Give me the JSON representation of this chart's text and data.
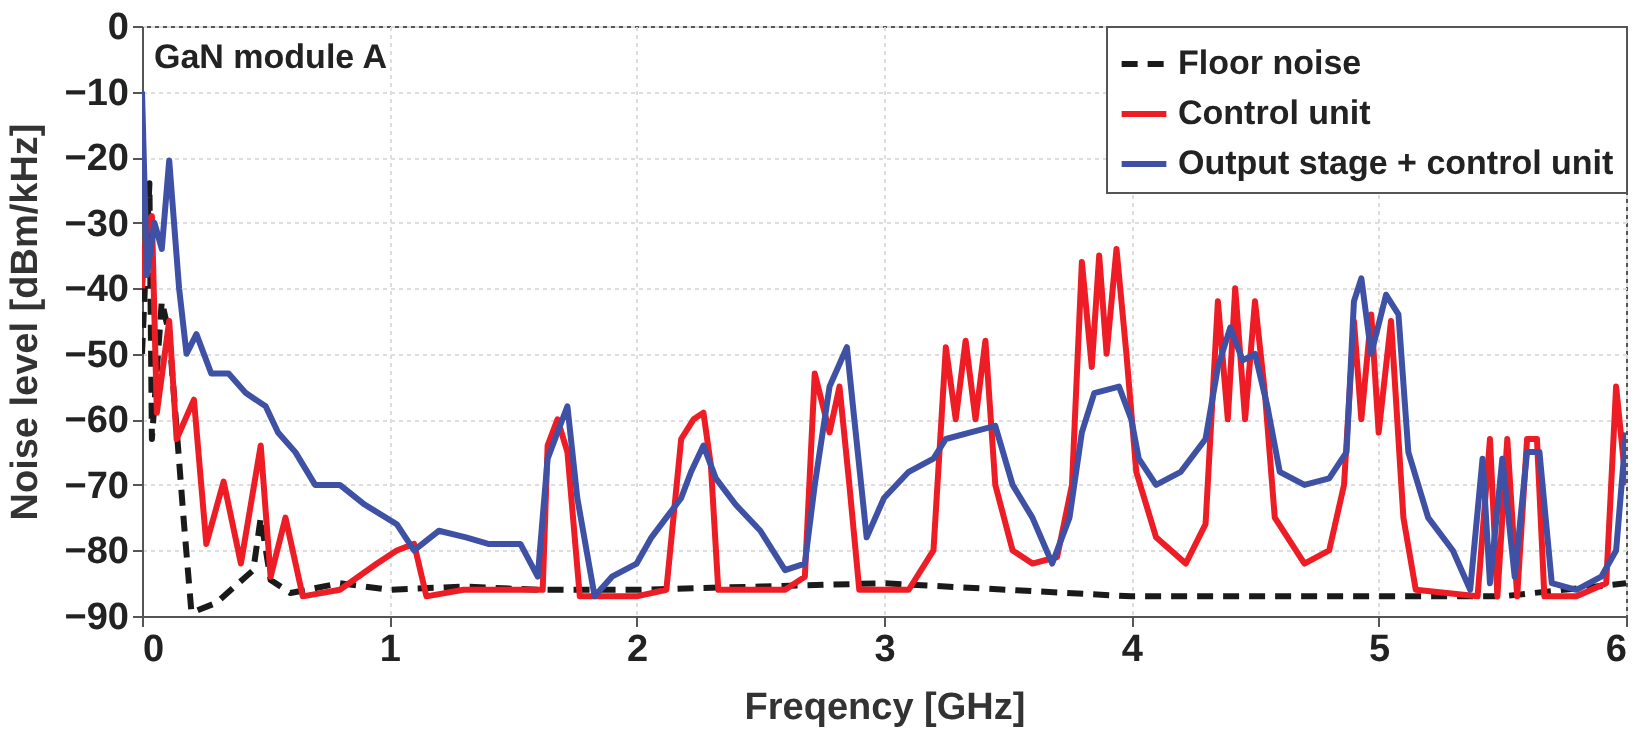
{
  "chart_data": {
    "type": "line",
    "xlabel": "Freqency [GHz]",
    "ylabel": "Noise level [dBm/kHz]",
    "annotations": [
      "GaN module A"
    ],
    "xlim": [
      0,
      6
    ],
    "xticks": [
      0,
      1,
      2,
      3,
      4,
      5,
      6
    ],
    "ylim": [
      -90,
      0
    ],
    "yticks": [
      -90,
      -80,
      -70,
      -60,
      -50,
      -40,
      -30,
      -20,
      -10,
      0
    ],
    "grid": true,
    "legend": "top right",
    "marker": "none",
    "series": [
      {
        "name": "Floor noise",
        "color": "#1a1a1a",
        "line_style": "dashed",
        "x": [
          0.0,
          0.03,
          0.04,
          0.08,
          0.11,
          0.17,
          0.2,
          0.3,
          0.45,
          0.48,
          0.52,
          0.6,
          0.8,
          1.0,
          1.3,
          1.6,
          2.0,
          2.5,
          3.0,
          3.5,
          4.0,
          4.5,
          5.0,
          5.5,
          6.0
        ],
        "values": [
          -50,
          -24,
          -63,
          -42,
          -47,
          -76,
          -89.5,
          -88,
          -83,
          -75,
          -84.5,
          -86.5,
          -85,
          -86,
          -85.5,
          -86,
          -86,
          -85.5,
          -85,
          -86,
          -87,
          -87,
          -87,
          -87,
          -85
        ]
      },
      {
        "name": "Control unit",
        "color": "#ee1c25",
        "line_style": "solid",
        "x": [
          0.0,
          0.02,
          0.04,
          0.06,
          0.11,
          0.14,
          0.21,
          0.26,
          0.33,
          0.4,
          0.48,
          0.52,
          0.58,
          0.65,
          0.8,
          0.95,
          1.03,
          1.1,
          1.15,
          1.3,
          1.5,
          1.62,
          1.64,
          1.68,
          1.72,
          1.77,
          2.0,
          2.12,
          2.18,
          2.23,
          2.27,
          2.3,
          2.33,
          2.6,
          2.68,
          2.72,
          2.78,
          2.82,
          2.86,
          2.9,
          3.1,
          3.2,
          3.25,
          3.29,
          3.33,
          3.37,
          3.41,
          3.45,
          3.52,
          3.6,
          3.7,
          3.76,
          3.8,
          3.84,
          3.87,
          3.9,
          3.94,
          3.98,
          4.02,
          4.1,
          4.22,
          4.3,
          4.35,
          4.39,
          4.42,
          4.46,
          4.5,
          4.54,
          4.58,
          4.7,
          4.8,
          4.86,
          4.9,
          4.93,
          4.97,
          5.0,
          5.05,
          5.1,
          5.15,
          5.4,
          5.45,
          5.48,
          5.52,
          5.56,
          5.6,
          5.64,
          5.67,
          5.8,
          5.92,
          5.96,
          6.0
        ],
        "values": [
          -40,
          -30,
          -29,
          -59,
          -45,
          -63,
          -57,
          -79,
          -69.5,
          -82,
          -64,
          -84,
          -75,
          -87,
          -86,
          -82,
          -80,
          -79,
          -87,
          -86,
          -86,
          -86,
          -64,
          -60,
          -65,
          -87,
          -87,
          -86,
          -63,
          -60,
          -59,
          -67,
          -86,
          -86,
          -84,
          -53,
          -62,
          -55,
          -70,
          -86,
          -86,
          -80,
          -49,
          -60,
          -48,
          -60,
          -48,
          -70,
          -80,
          -82,
          -81,
          -70,
          -36,
          -52,
          -35,
          -50,
          -34,
          -50,
          -68,
          -78,
          -82,
          -76,
          -42,
          -60,
          -40,
          -60,
          -42,
          -56,
          -75,
          -82,
          -80,
          -70,
          -45,
          -60,
          -44,
          -62,
          -45,
          -75,
          -86,
          -87,
          -63,
          -87,
          -63,
          -87,
          -63,
          -63,
          -87,
          -87,
          -85,
          -55,
          -70
        ]
      },
      {
        "name": "Output stage + control unit",
        "color": "#3f51a5",
        "line_style": "solid",
        "x": [
          0.0,
          0.02,
          0.05,
          0.08,
          0.11,
          0.15,
          0.18,
          0.22,
          0.28,
          0.35,
          0.42,
          0.5,
          0.55,
          0.62,
          0.7,
          0.8,
          0.9,
          1.03,
          1.1,
          1.2,
          1.31,
          1.4,
          1.53,
          1.6,
          1.64,
          1.67,
          1.72,
          1.76,
          1.83,
          1.9,
          2.0,
          2.06,
          2.12,
          2.18,
          2.22,
          2.27,
          2.32,
          2.4,
          2.5,
          2.6,
          2.68,
          2.72,
          2.78,
          2.85,
          2.88,
          2.93,
          3.0,
          3.1,
          3.2,
          3.25,
          3.35,
          3.45,
          3.52,
          3.6,
          3.68,
          3.75,
          3.8,
          3.85,
          3.95,
          4.0,
          4.03,
          4.1,
          4.2,
          4.3,
          4.35,
          4.4,
          4.45,
          4.5,
          4.55,
          4.6,
          4.7,
          4.8,
          4.87,
          4.9,
          4.93,
          4.97,
          5.03,
          5.08,
          5.12,
          5.2,
          5.3,
          5.37,
          5.42,
          5.45,
          5.5,
          5.55,
          5.6,
          5.65,
          5.7,
          5.8,
          5.9,
          5.96,
          6.0
        ],
        "values": [
          -10,
          -38,
          -30,
          -34,
          -20.5,
          -40,
          -50,
          -47,
          -53,
          -53,
          -56,
          -58,
          -62,
          -65,
          -70,
          -70,
          -73,
          -76,
          -80,
          -77,
          -78,
          -79,
          -79,
          -84,
          -66,
          -63,
          -58,
          -72,
          -87,
          -84,
          -82,
          -78,
          -75,
          -72,
          -68,
          -64,
          -69,
          -73,
          -77,
          -83,
          -82,
          -70,
          -55,
          -49,
          -60,
          -78,
          -72,
          -68,
          -66,
          -63,
          -62,
          -61,
          -70,
          -75,
          -82,
          -75,
          -62,
          -56,
          -55,
          -60,
          -66,
          -70,
          -68,
          -63,
          -52,
          -46,
          -51,
          -50,
          -58,
          -68,
          -70,
          -69,
          -65,
          -42,
          -38.5,
          -50,
          -41,
          -44,
          -65,
          -75,
          -80,
          -86,
          -66,
          -85,
          -66,
          -84,
          -65,
          -65,
          -85,
          -86,
          -84,
          -80,
          -62
        ]
      }
    ]
  }
}
